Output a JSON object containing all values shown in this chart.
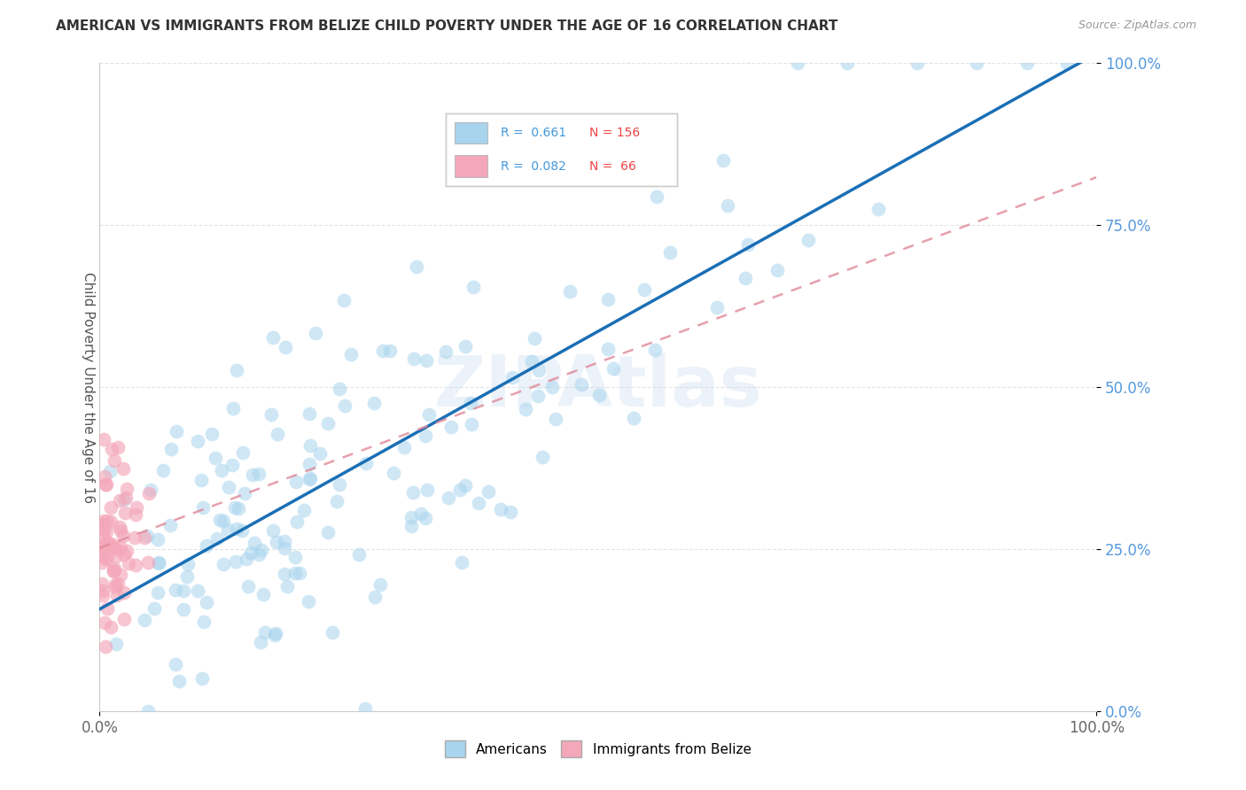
{
  "title": "AMERICAN VS IMMIGRANTS FROM BELIZE CHILD POVERTY UNDER THE AGE OF 16 CORRELATION CHART",
  "source": "Source: ZipAtlas.com",
  "ylabel": "Child Poverty Under the Age of 16",
  "r_americans": 0.661,
  "n_americans": 156,
  "r_belize": 0.082,
  "n_belize": 66,
  "color_americans": "#A8D4EE",
  "color_belize": "#F4A7B9",
  "line_color_americans": "#1A6FB5",
  "line_color_belize": "#E08898",
  "background_color": "#FFFFFF",
  "xlim": [
    0.0,
    1.0
  ],
  "ylim": [
    0.0,
    1.0
  ],
  "ytick_labels": [
    "0.0%",
    "25.0%",
    "50.0%",
    "75.0%",
    "100.0%"
  ],
  "ytick_positions": [
    0.0,
    0.25,
    0.5,
    0.75,
    1.0
  ],
  "grid_color": "#DDDDDD",
  "watermark_color": "#D8E8F0",
  "ytick_color": "#5599DD",
  "xtick_color": "#666666"
}
